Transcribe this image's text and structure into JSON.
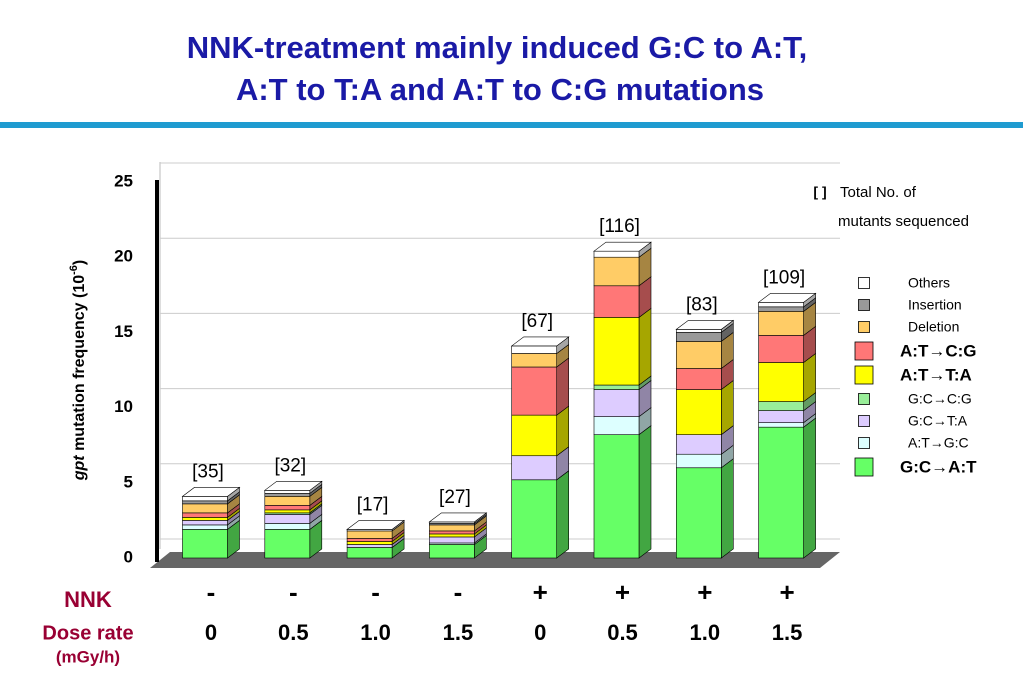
{
  "chart_data": {
    "type": "stacked-bar",
    "title": [
      "NNK-treatment mainly induced G:C to A:T,",
      "A:T to T:A and A:T to C:G mutations"
    ],
    "y_axis_label": {
      "italic": "gpt",
      "text": " mutation frequency (10",
      "sup": "-6",
      "end": ")"
    },
    "row_labels": [
      "NNK",
      "Dose rate",
      "(mGy/h)"
    ],
    "treatment": [
      "-",
      "-",
      "-",
      "-",
      "+",
      "+",
      "+",
      "+"
    ],
    "categories": [
      "0",
      "0.5",
      "1.0",
      "1.5",
      "0",
      "0.5",
      "1.0",
      "1.5"
    ],
    "annotations": [
      "[35]",
      "[32]",
      "[17]",
      "[27]",
      "[67]",
      "[116]",
      "[83]",
      "[109]"
    ],
    "legend_note": {
      "symbol": "[ ]",
      "lines": [
        "Total No. of",
        "mutants sequenced"
      ]
    },
    "ylim": [
      0,
      25
    ],
    "yticks": [
      0,
      5,
      10,
      15,
      20,
      25
    ],
    "grid": true,
    "series": [
      {
        "name": "G:C→A:T",
        "color": "#66ff66",
        "bold": true,
        "values": [
          1.9,
          1.9,
          0.7,
          0.9,
          5.2,
          8.2,
          6.0,
          8.7
        ]
      },
      {
        "name": "A:T→G:C",
        "color": "#ddffff",
        "bold": false,
        "values": [
          0.3,
          0.4,
          0,
          0.1,
          0,
          1.2,
          0.9,
          0.3
        ]
      },
      {
        "name": "G:C→T:A",
        "color": "#ddccff",
        "bold": false,
        "values": [
          0.3,
          0.6,
          0.2,
          0.4,
          1.6,
          1.8,
          1.3,
          0.8
        ]
      },
      {
        "name": "G:C→C:G",
        "color": "#99ee99",
        "bold": false,
        "values": [
          0,
          0.1,
          0,
          0,
          0,
          0.3,
          0,
          0.6
        ]
      },
      {
        "name": "A:T→T:A",
        "color": "#ffff00",
        "bold": true,
        "values": [
          0.2,
          0.2,
          0.2,
          0.2,
          2.7,
          4.5,
          3.0,
          2.6
        ]
      },
      {
        "name": "A:T→C:G",
        "color": "#ff7777",
        "bold": true,
        "values": [
          0.3,
          0.3,
          0.2,
          0.2,
          3.2,
          2.1,
          1.4,
          1.8
        ]
      },
      {
        "name": "Deletion",
        "color": "#ffcc66",
        "bold": false,
        "values": [
          0.6,
          0.6,
          0.5,
          0.4,
          0.9,
          1.9,
          1.8,
          1.6
        ]
      },
      {
        "name": "Insertion",
        "color": "#999999",
        "bold": false,
        "values": [
          0.2,
          0.2,
          0,
          0.1,
          0,
          0,
          0.6,
          0.3
        ]
      },
      {
        "name": "Others",
        "color": "#ffffff",
        "bold": false,
        "values": [
          0.3,
          0.2,
          0.1,
          0.1,
          0.5,
          0.4,
          0.2,
          0.3
        ]
      }
    ]
  }
}
